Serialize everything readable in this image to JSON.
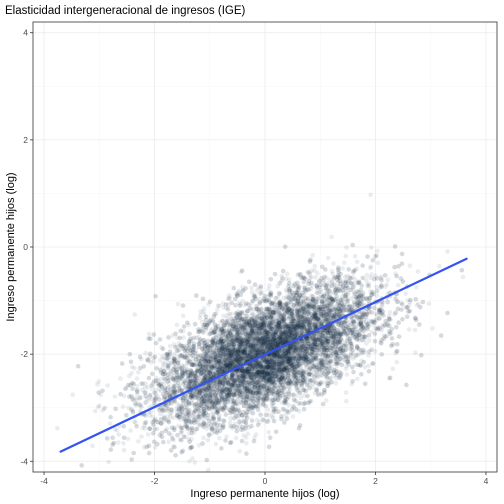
{
  "chart_data": {
    "type": "scatter",
    "title": "Elasticidad intergeneracional de ingresos (IGE)",
    "xlabel": "Ingreso permanente hijos (log)",
    "ylabel": "Ingreso permanente hijos (log)",
    "xlim": [
      -4.2,
      4.2
    ],
    "ylim": [
      -4.2,
      4.2
    ],
    "x_ticks": [
      -4,
      -2,
      0,
      2,
      4
    ],
    "y_ticks": [
      -4,
      -2,
      0,
      2,
      4
    ],
    "x_tick_labels": [
      "-4",
      "-2",
      "0",
      "2",
      "4"
    ],
    "y_tick_labels": [
      "-4",
      "-2",
      "0",
      "2",
      "4"
    ],
    "grid": true,
    "legend": "none",
    "points": {
      "n": 10000,
      "x_mean": 0.0,
      "x_sd": 1.0,
      "y_mean": -2.0,
      "y_sd": 0.65,
      "correlation": 0.6,
      "color": "#1b2a47",
      "alpha": 0.09
    },
    "fit_line": {
      "x": [
        -3.7,
        3.65
      ],
      "y": [
        -3.82,
        -0.22
      ],
      "color": "#3354f0"
    }
  }
}
